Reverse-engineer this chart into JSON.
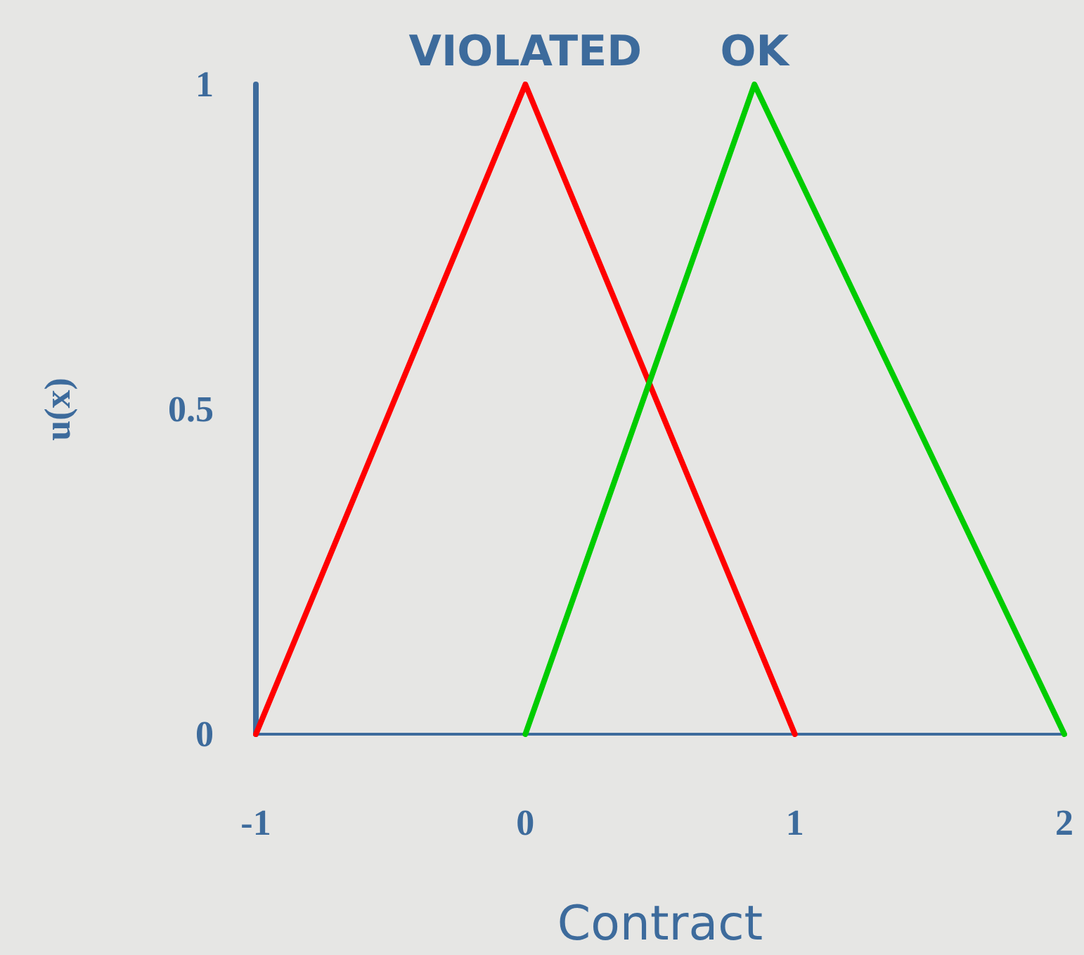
{
  "chart_data": {
    "type": "line",
    "xlabel": "Contract",
    "ylabel": "u(x)",
    "xlim": [
      -1,
      2
    ],
    "xticks": [
      -1,
      0,
      1,
      2
    ],
    "ylim": [
      0,
      1
    ],
    "yticks": [
      0,
      0.5,
      1
    ],
    "marker": "none",
    "line_style": "solid",
    "series": [
      {
        "name": "VIOLATED",
        "color": "#ff0000",
        "x": [
          -1,
          0,
          1
        ],
        "values": [
          0,
          1,
          0
        ]
      },
      {
        "name": "OK",
        "color": "#00cc00",
        "x": [
          0,
          0.85,
          2
        ],
        "values": [
          0,
          1,
          0
        ]
      }
    ]
  }
}
